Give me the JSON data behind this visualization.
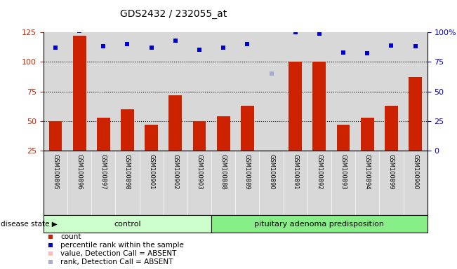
{
  "title": "GDS2432 / 232055_at",
  "samples": [
    "GSM100895",
    "GSM100896",
    "GSM100897",
    "GSM100898",
    "GSM100901",
    "GSM100902",
    "GSM100903",
    "GSM100888",
    "GSM100889",
    "GSM100890",
    "GSM100891",
    "GSM100892",
    "GSM100893",
    "GSM100894",
    "GSM100899",
    "GSM100900"
  ],
  "counts": [
    50,
    122,
    53,
    60,
    47,
    72,
    50,
    54,
    63,
    25,
    100,
    100,
    47,
    53,
    63,
    87
  ],
  "percentile_ranks": [
    87,
    101,
    88,
    90,
    87,
    93,
    85,
    87,
    90,
    null,
    100,
    99,
    83,
    82,
    89,
    88
  ],
  "absent_value_idx": 9,
  "absent_value": 25,
  "absent_rank": 65,
  "control_count": 7,
  "control_label": "control",
  "disease_label": "pituitary adenoma predisposition",
  "disease_state_label": "disease state",
  "ylim_left": [
    25,
    125
  ],
  "ylim_right": [
    0,
    100
  ],
  "yticks_left": [
    25,
    50,
    75,
    100,
    125
  ],
  "ytick_labels_left": [
    "25",
    "50",
    "75",
    "100",
    "125"
  ],
  "yticks_right": [
    0,
    25,
    50,
    75,
    100
  ],
  "ytick_labels_right": [
    "0",
    "25",
    "50",
    "75",
    "100%"
  ],
  "bar_color": "#cc2200",
  "dot_color": "#0000cc",
  "absent_value_color": "#ffbbbb",
  "absent_rank_color": "#aaaacc",
  "plot_bg": "#d8d8d8",
  "hline_vals": [
    50,
    75,
    100
  ],
  "legend_items": [
    {
      "label": "count",
      "color": "#cc2200"
    },
    {
      "label": "percentile rank within the sample",
      "color": "#0000cc"
    },
    {
      "label": "value, Detection Call = ABSENT",
      "color": "#ffbbbb"
    },
    {
      "label": "rank, Detection Call = ABSENT",
      "color": "#aaaacc"
    }
  ]
}
